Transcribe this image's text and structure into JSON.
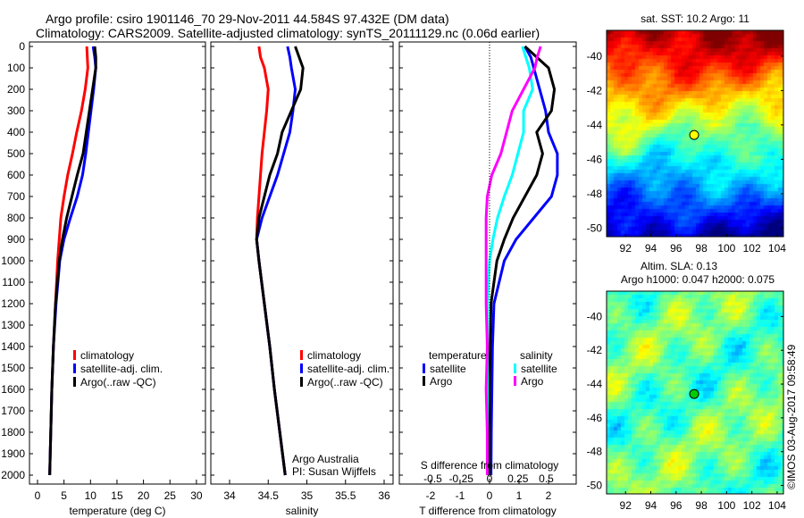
{
  "title_line1": "Argo profile: csiro 1901146_70 29-Nov-2011 44.584S 97.432E (DM data)",
  "title_line2": "Climatology: CARS2009. Satellite-adjusted climatology: synTS_20111129.nc (0.06d earlier)",
  "credit": "Argo Australia",
  "pi": "PI: Susan Wijffels",
  "watermark": "©IMOS 03-Aug-2017 09:58:49",
  "colors": {
    "climatology": "#ff0000",
    "satellite": "#0000ff",
    "argo": "#000000",
    "sat_sal": "#00ffff",
    "argo_sal": "#ff00ff"
  },
  "chart_data": [
    {
      "type": "line",
      "xlabel": "temperature (deg C)",
      "ylabel": "",
      "xlim": [
        -1,
        31
      ],
      "ylim": [
        2050,
        0
      ],
      "xticks": [
        0,
        5,
        10,
        15,
        20,
        25,
        30
      ],
      "yticks": [
        0,
        100,
        200,
        300,
        400,
        500,
        600,
        700,
        800,
        900,
        1000,
        1100,
        1200,
        1300,
        1400,
        1500,
        1600,
        1700,
        1800,
        1900,
        2000
      ],
      "depth": [
        0,
        50,
        100,
        200,
        300,
        400,
        500,
        600,
        700,
        800,
        900,
        1000,
        1200,
        1400,
        1600,
        1800,
        2000
      ],
      "legend": [
        "climatology",
        "satellite-adj. clim.",
        "Argo(..raw -QC)"
      ],
      "series": [
        {
          "name": "climatology",
          "values": [
            9.3,
            9.4,
            9.5,
            9.0,
            8.3,
            7.4,
            6.6,
            5.7,
            5.0,
            4.4,
            4.1,
            3.8,
            3.4,
            3.0,
            2.7,
            2.5,
            2.3
          ]
        },
        {
          "name": "satellite-adj. clim.",
          "values": [
            10.5,
            10.8,
            11.0,
            10.6,
            10.1,
            9.6,
            9.1,
            8.5,
            7.5,
            6.2,
            5.0,
            4.2,
            3.5,
            3.0,
            2.7,
            2.5,
            2.3
          ]
        },
        {
          "name": "Argo(..raw -QC)",
          "values": [
            10.8,
            11.0,
            11.0,
            10.4,
            9.8,
            9.2,
            8.6,
            7.5,
            6.5,
            5.5,
            4.7,
            4.1,
            3.4,
            3.0,
            2.7,
            2.5,
            2.3
          ]
        }
      ]
    },
    {
      "type": "line",
      "xlabel": "salinity",
      "xlim": [
        33.75,
        36.1
      ],
      "ylim": [
        2050,
        0
      ],
      "xticks": [
        34,
        34.5,
        35,
        35.5,
        36
      ],
      "depth": [
        0,
        50,
        100,
        200,
        300,
        400,
        500,
        600,
        700,
        800,
        900,
        1000,
        1200,
        1400,
        1600,
        1800,
        2000
      ],
      "legend": [
        "climatology",
        "satellite-adj. clim.",
        "Argo(..raw -QC)"
      ],
      "series": [
        {
          "name": "climatology",
          "values": [
            34.38,
            34.4,
            34.45,
            34.5,
            34.48,
            34.45,
            34.42,
            34.4,
            34.38,
            34.36,
            34.35,
            34.38,
            34.45,
            34.52,
            34.58,
            34.65,
            34.72
          ]
        },
        {
          "name": "satellite-adj. clim.",
          "values": [
            34.75,
            34.78,
            34.8,
            34.85,
            34.82,
            34.78,
            34.7,
            34.62,
            34.52,
            34.42,
            34.35,
            34.38,
            34.45,
            34.52,
            34.58,
            34.65,
            34.72
          ]
        },
        {
          "name": "Argo(..raw -QC)",
          "values": [
            34.85,
            34.9,
            34.95,
            34.92,
            34.8,
            34.68,
            34.62,
            34.52,
            34.45,
            34.38,
            34.35,
            34.38,
            34.45,
            34.52,
            34.58,
            34.65,
            34.72
          ]
        }
      ]
    },
    {
      "type": "line",
      "xlabel": "T difference from climatology",
      "xlabel2": "S difference from climatology",
      "xlim": [
        -3,
        3
      ],
      "ylim": [
        2050,
        0
      ],
      "xticks": [
        -2,
        -1,
        0,
        1,
        2
      ],
      "xticks2": [
        -0.5,
        -0.25,
        0,
        0.25,
        0.5
      ],
      "depth": [
        0,
        50,
        100,
        200,
        300,
        400,
        500,
        600,
        700,
        800,
        900,
        1000,
        1200,
        1400,
        1600,
        1800,
        2000
      ],
      "legend_headers": [
        "temperature",
        "salinity"
      ],
      "legend": [
        "satellite",
        "Argo",
        "satellite",
        "Argo"
      ],
      "series": [
        {
          "name": "temperature satellite",
          "values": [
            1.2,
            1.4,
            1.5,
            1.7,
            1.9,
            2.0,
            2.3,
            2.3,
            2.1,
            1.5,
            0.9,
            0.5,
            0.15,
            0.1,
            0.08,
            0.06,
            0.05
          ]
        },
        {
          "name": "temperature Argo",
          "values": [
            1.2,
            1.6,
            2.0,
            2.2,
            2.1,
            1.6,
            1.8,
            1.6,
            1.2,
            0.8,
            0.5,
            0.25,
            0.05,
            0.02,
            0.0,
            0.0,
            0.0
          ]
        },
        {
          "name": "salinity satellite",
          "values": [
            0.29,
            0.32,
            0.35,
            0.38,
            0.3,
            0.3,
            0.25,
            0.2,
            0.13,
            0.07,
            0.03,
            0.0,
            -0.02,
            -0.02,
            -0.02,
            -0.02,
            -0.02
          ]
        },
        {
          "name": "salinity Argo",
          "values": [
            0.45,
            0.42,
            0.4,
            0.3,
            0.2,
            0.15,
            0.1,
            0.02,
            -0.02,
            -0.03,
            -0.03,
            -0.03,
            -0.03,
            -0.02,
            -0.03,
            -0.02,
            -0.02
          ]
        }
      ]
    },
    {
      "type": "heatmap",
      "title": "sat. SST: 10.2 Argo: 11",
      "xticks": [
        92,
        94,
        96,
        98,
        100,
        102,
        104
      ],
      "yticks": [
        -40,
        -42,
        -44,
        -46,
        -48,
        -50
      ],
      "xlim": [
        90.5,
        104.5
      ],
      "ylim": [
        -50.5,
        -38.5
      ],
      "marker": [
        97.432,
        -44.584
      ]
    },
    {
      "type": "heatmap",
      "title": "Altim. SLA: 0.13",
      "subtitle": "Argo h1000: 0.047 h2000: 0.075",
      "xticks": [
        92,
        94,
        96,
        98,
        100,
        102,
        104
      ],
      "yticks": [
        -40,
        -42,
        -44,
        -46,
        -48,
        -50
      ],
      "xlim": [
        90.5,
        104.5
      ],
      "ylim": [
        -50.5,
        -38.5
      ],
      "marker": [
        97.432,
        -44.584
      ]
    }
  ]
}
